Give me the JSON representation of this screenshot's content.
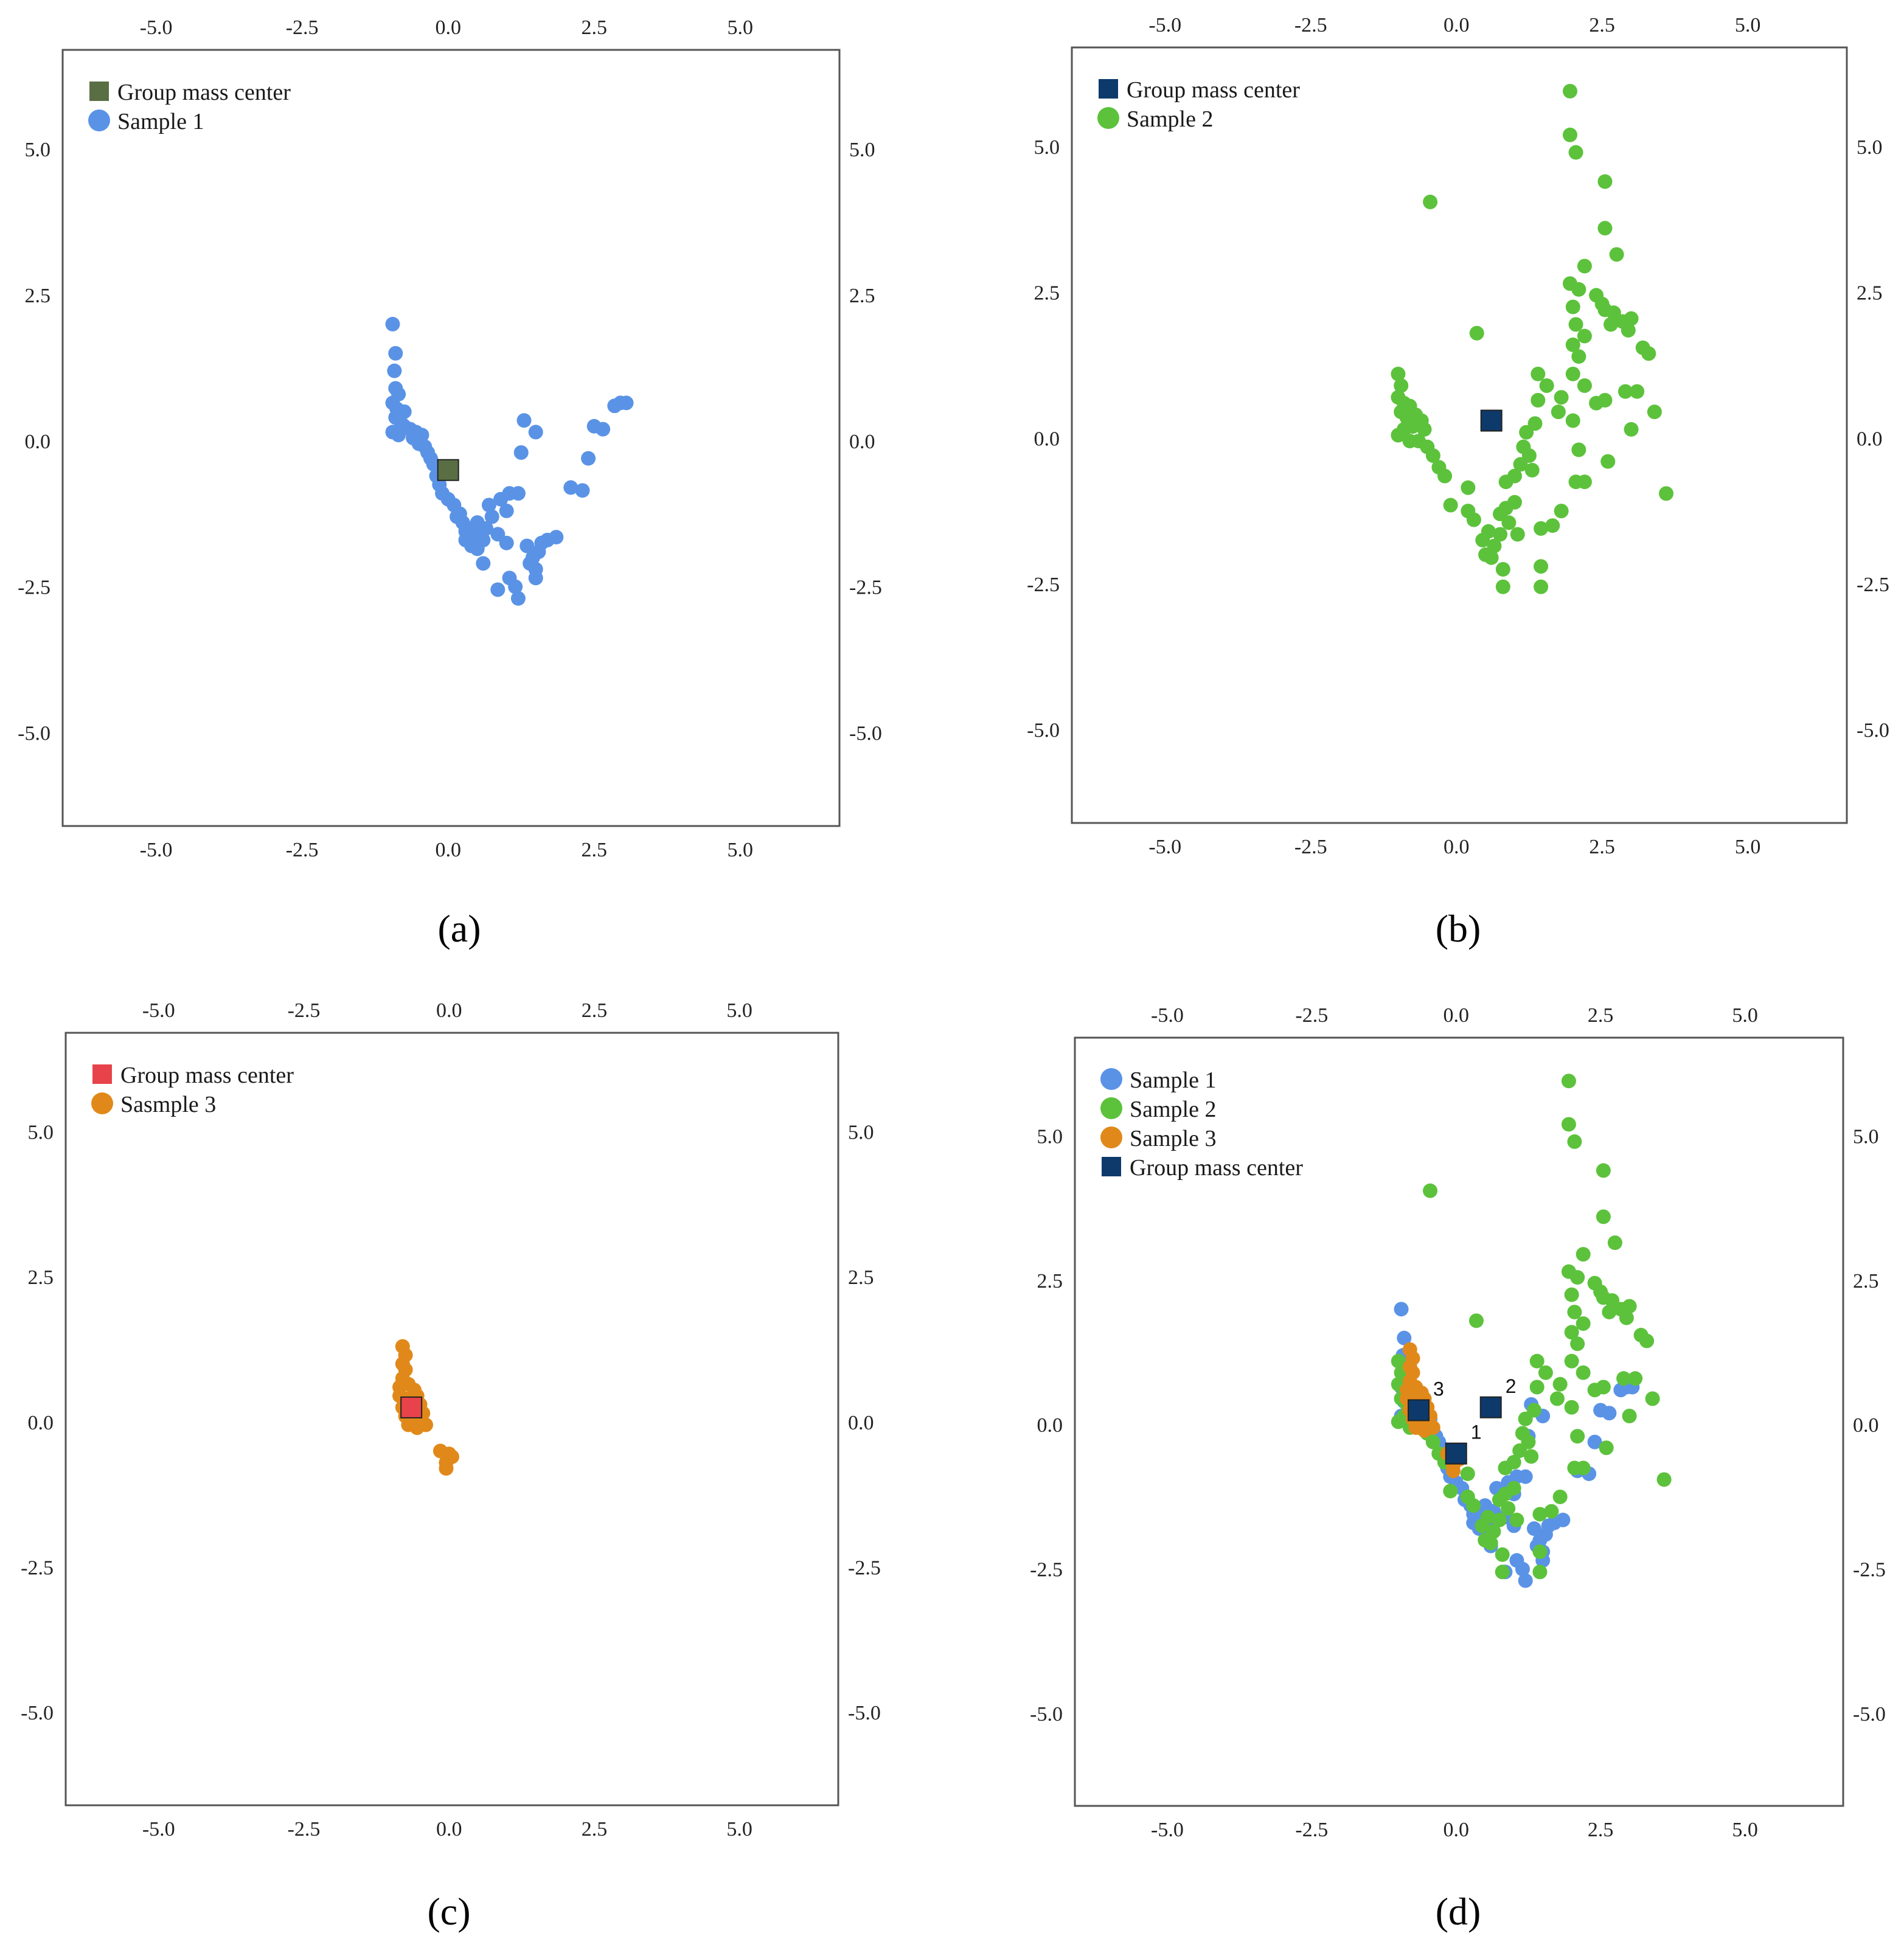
{
  "figure": {
    "axis_ticks": [
      "-5.0",
      "-2.5",
      "0.0",
      "2.5",
      "5.0"
    ]
  },
  "chart_data": [
    {
      "type": "scatter",
      "caption": "(a)",
      "xlim": [
        -6.6,
        6.7
      ],
      "ylim": [
        -6.6,
        6.7
      ],
      "ticks": [
        -5,
        -2.5,
        0,
        2.5,
        5
      ],
      "legend": [
        {
          "label": "Group mass center",
          "marker": "square",
          "color": "#5a6e44"
        },
        {
          "label": "Sample 1",
          "marker": "circle",
          "color": "#5a93e6"
        }
      ],
      "series": [
        {
          "name": "Sample 1",
          "color": "#5a93e6",
          "points": [
            [
              -0.95,
              2.0
            ],
            [
              -0.9,
              1.5
            ],
            [
              -0.92,
              1.2
            ],
            [
              -0.9,
              0.9
            ],
            [
              -0.85,
              0.8
            ],
            [
              -0.95,
              0.65
            ],
            [
              -0.88,
              0.55
            ],
            [
              -0.75,
              0.5
            ],
            [
              -0.9,
              0.4
            ],
            [
              -0.8,
              0.3
            ],
            [
              -0.95,
              0.15
            ],
            [
              -0.85,
              0.1
            ],
            [
              -0.75,
              0.25
            ],
            [
              -0.65,
              0.2
            ],
            [
              -0.55,
              0.15
            ],
            [
              -0.6,
              0.05
            ],
            [
              -0.45,
              0.1
            ],
            [
              -0.5,
              -0.05
            ],
            [
              -0.4,
              -0.1
            ],
            [
              -0.35,
              -0.2
            ],
            [
              -0.3,
              -0.3
            ],
            [
              -0.25,
              -0.4
            ],
            [
              -0.2,
              -0.6
            ],
            [
              -0.15,
              -0.75
            ],
            [
              -0.1,
              -0.9
            ],
            [
              0.0,
              -1.0
            ],
            [
              0.1,
              -1.1
            ],
            [
              0.2,
              -1.25
            ],
            [
              0.25,
              -1.4
            ],
            [
              0.35,
              -1.5
            ],
            [
              0.45,
              -1.55
            ],
            [
              0.55,
              -1.6
            ],
            [
              0.3,
              -1.7
            ],
            [
              0.4,
              -1.8
            ],
            [
              0.5,
              -1.85
            ],
            [
              0.6,
              -1.7
            ],
            [
              0.65,
              -1.5
            ],
            [
              0.75,
              -1.3
            ],
            [
              0.7,
              -1.1
            ],
            [
              0.9,
              -1.0
            ],
            [
              1.0,
              -1.2
            ],
            [
              0.85,
              -1.6
            ],
            [
              1.05,
              -0.9
            ],
            [
              1.2,
              -0.9
            ],
            [
              0.6,
              -2.1
            ],
            [
              0.85,
              -2.55
            ],
            [
              1.05,
              -2.35
            ],
            [
              1.15,
              -2.5
            ],
            [
              1.2,
              -2.7
            ],
            [
              1.0,
              -1.75
            ],
            [
              1.35,
              -1.8
            ],
            [
              1.45,
              -2.0
            ],
            [
              1.5,
              -2.2
            ],
            [
              1.55,
              -1.9
            ],
            [
              1.6,
              -1.75
            ],
            [
              1.7,
              -1.7
            ],
            [
              1.85,
              -1.65
            ],
            [
              1.4,
              -2.1
            ],
            [
              1.5,
              -2.35
            ],
            [
              1.3,
              0.35
            ],
            [
              1.25,
              -0.2
            ],
            [
              1.5,
              0.15
            ],
            [
              2.1,
              -0.8
            ],
            [
              2.3,
              -0.85
            ],
            [
              2.4,
              -0.3
            ],
            [
              2.5,
              0.25
            ],
            [
              2.65,
              0.2
            ],
            [
              2.85,
              0.6
            ],
            [
              2.95,
              0.65
            ],
            [
              3.05,
              0.65
            ],
            [
              0.3,
              -1.55
            ],
            [
              0.5,
              -1.4
            ],
            [
              0.15,
              -1.3
            ],
            [
              0.4,
              -1.65
            ]
          ]
        },
        {
          "name": "Group mass center",
          "color": "#5a6e44",
          "marker": "square",
          "points": [
            [
              0.0,
              -0.5
            ]
          ]
        }
      ]
    },
    {
      "type": "scatter",
      "caption": "(b)",
      "xlim": [
        -6.6,
        6.7
      ],
      "ylim": [
        -6.6,
        6.7
      ],
      "ticks": [
        -5,
        -2.5,
        0,
        2.5,
        5
      ],
      "legend": [
        {
          "label": "Group mass center",
          "marker": "square",
          "color": "#0d3a6b"
        },
        {
          "label": "Sample 2",
          "marker": "circle",
          "color": "#5cc23b"
        }
      ],
      "series": [
        {
          "name": "Sample 2",
          "color": "#5cc23b",
          "points": [
            [
              1.95,
              5.95
            ],
            [
              1.95,
              5.2
            ],
            [
              2.05,
              4.9
            ],
            [
              2.55,
              4.4
            ],
            [
              2.55,
              3.6
            ],
            [
              2.75,
              3.15
            ],
            [
              2.2,
              2.95
            ],
            [
              1.95,
              2.65
            ],
            [
              2.1,
              2.55
            ],
            [
              2.4,
              2.45
            ],
            [
              2.5,
              2.3
            ],
            [
              2.55,
              2.2
            ],
            [
              2.7,
              2.15
            ],
            [
              2.85,
              2.0
            ],
            [
              3.0,
              2.05
            ],
            [
              2.65,
              1.95
            ],
            [
              2.95,
              1.85
            ],
            [
              3.2,
              1.55
            ],
            [
              3.3,
              1.45
            ],
            [
              2.0,
              2.25
            ],
            [
              2.05,
              1.95
            ],
            [
              2.2,
              1.75
            ],
            [
              2.0,
              1.6
            ],
            [
              2.1,
              1.4
            ],
            [
              2.0,
              1.1
            ],
            [
              2.2,
              0.9
            ],
            [
              2.4,
              0.6
            ],
            [
              2.55,
              0.65
            ],
            [
              2.9,
              0.8
            ],
            [
              3.1,
              0.8
            ],
            [
              3.4,
              0.45
            ],
            [
              3.6,
              -0.95
            ],
            [
              2.6,
              -0.4
            ],
            [
              2.2,
              -0.75
            ],
            [
              2.05,
              -0.75
            ],
            [
              2.1,
              -0.2
            ],
            [
              2.0,
              0.3
            ],
            [
              3.0,
              0.15
            ],
            [
              1.8,
              0.7
            ],
            [
              1.75,
              0.45
            ],
            [
              1.55,
              0.9
            ],
            [
              1.4,
              1.1
            ],
            [
              1.4,
              0.65
            ],
            [
              1.35,
              0.25
            ],
            [
              1.2,
              0.1
            ],
            [
              1.15,
              -0.15
            ],
            [
              1.3,
              -0.55
            ],
            [
              1.25,
              -0.3
            ],
            [
              1.1,
              -0.45
            ],
            [
              1.0,
              -0.65
            ],
            [
              0.85,
              -0.75
            ],
            [
              1.0,
              -1.1
            ],
            [
              0.85,
              -1.2
            ],
            [
              0.75,
              -1.3
            ],
            [
              0.9,
              -1.45
            ],
            [
              1.05,
              -1.65
            ],
            [
              0.75,
              -1.65
            ],
            [
              0.65,
              -1.85
            ],
            [
              0.55,
              -1.6
            ],
            [
              0.45,
              -1.75
            ],
            [
              0.5,
              -2.0
            ],
            [
              0.6,
              -2.05
            ],
            [
              0.8,
              -2.25
            ],
            [
              0.8,
              -2.55
            ],
            [
              1.45,
              -2.2
            ],
            [
              1.45,
              -2.55
            ],
            [
              1.45,
              -1.55
            ],
            [
              1.65,
              -1.5
            ],
            [
              1.8,
              -1.25
            ],
            [
              0.3,
              -1.4
            ],
            [
              0.2,
              -1.25
            ],
            [
              -0.1,
              -1.15
            ],
            [
              0.2,
              -0.85
            ],
            [
              0.35,
              1.8
            ],
            [
              -0.45,
              4.05
            ],
            [
              -1.0,
              1.1
            ],
            [
              -0.95,
              0.9
            ],
            [
              -1.0,
              0.7
            ],
            [
              -0.9,
              0.6
            ],
            [
              -0.8,
              0.55
            ],
            [
              -0.95,
              0.45
            ],
            [
              -0.85,
              0.35
            ],
            [
              -0.7,
              0.4
            ],
            [
              -0.6,
              0.3
            ],
            [
              -0.55,
              0.15
            ],
            [
              -0.75,
              0.2
            ],
            [
              -0.9,
              0.15
            ],
            [
              -1.0,
              0.05
            ],
            [
              -0.8,
              -0.05
            ],
            [
              -0.65,
              -0.05
            ],
            [
              -0.5,
              -0.15
            ],
            [
              -0.4,
              -0.3
            ],
            [
              -0.3,
              -0.5
            ],
            [
              -0.2,
              -0.65
            ]
          ]
        },
        {
          "name": "Group mass center",
          "color": "#0d3a6b",
          "marker": "square",
          "points": [
            [
              0.6,
              0.3
            ]
          ]
        }
      ]
    },
    {
      "type": "scatter",
      "caption": "(c)",
      "xlim": [
        -6.6,
        6.7
      ],
      "ylim": [
        -6.6,
        6.7
      ],
      "ticks": [
        -5,
        -2.5,
        0,
        2.5,
        5
      ],
      "legend": [
        {
          "label": "Group mass center",
          "marker": "square",
          "color": "#e8434a"
        },
        {
          "label": "Sasmple 3",
          "marker": "circle",
          "color": "#e0891a"
        }
      ],
      "series": [
        {
          "name": "Sasmple 3",
          "color": "#e0891a",
          "points": [
            [
              -0.8,
              1.3
            ],
            [
              -0.75,
              1.15
            ],
            [
              -0.8,
              1.0
            ],
            [
              -0.75,
              0.9
            ],
            [
              -0.8,
              0.75
            ],
            [
              -0.85,
              0.6
            ],
            [
              -0.7,
              0.65
            ],
            [
              -0.85,
              0.45
            ],
            [
              -0.75,
              0.4
            ],
            [
              -0.6,
              0.55
            ],
            [
              -0.55,
              0.45
            ],
            [
              -0.65,
              0.3
            ],
            [
              -0.8,
              0.25
            ],
            [
              -0.75,
              0.1
            ],
            [
              -0.5,
              0.3
            ],
            [
              -0.45,
              0.15
            ],
            [
              -0.6,
              0.05
            ],
            [
              -0.7,
              -0.05
            ],
            [
              -0.5,
              0.0
            ],
            [
              -0.55,
              -0.1
            ],
            [
              -0.4,
              -0.05
            ],
            [
              -0.15,
              -0.5
            ],
            [
              0.0,
              -0.55
            ],
            [
              -0.05,
              -0.7
            ],
            [
              -0.05,
              -0.8
            ],
            [
              0.05,
              -0.6
            ]
          ]
        },
        {
          "name": "Group mass center",
          "color": "#e8434a",
          "marker": "square",
          "points": [
            [
              -0.65,
              0.25
            ]
          ]
        }
      ]
    },
    {
      "type": "scatter",
      "caption": "(d)",
      "xlim": [
        -6.6,
        6.7
      ],
      "ylim": [
        -6.6,
        6.7
      ],
      "ticks": [
        -5,
        -2.5,
        0,
        2.5,
        5
      ],
      "legend": [
        {
          "label": "Sample 1",
          "marker": "circle",
          "color": "#5a93e6"
        },
        {
          "label": "Sample 2",
          "marker": "circle",
          "color": "#5cc23b"
        },
        {
          "label": "Sample 3",
          "marker": "circle",
          "color": "#e0891a"
        },
        {
          "label": "Group mass center",
          "marker": "square",
          "color": "#0d3a6b"
        }
      ],
      "series": [
        {
          "name": "Sample 1",
          "color": "#5a93e6",
          "ref": 0
        },
        {
          "name": "Sample 2",
          "color": "#5cc23b",
          "ref": 1
        },
        {
          "name": "Sample 3",
          "color": "#e0891a",
          "ref": 2
        },
        {
          "name": "Group mass center",
          "color": "#0d3a6b",
          "marker": "square",
          "points": [
            [
              0.0,
              -0.5
            ],
            [
              0.6,
              0.3
            ],
            [
              -0.65,
              0.25
            ]
          ],
          "labels": [
            "1",
            "2",
            "3"
          ]
        }
      ]
    }
  ]
}
